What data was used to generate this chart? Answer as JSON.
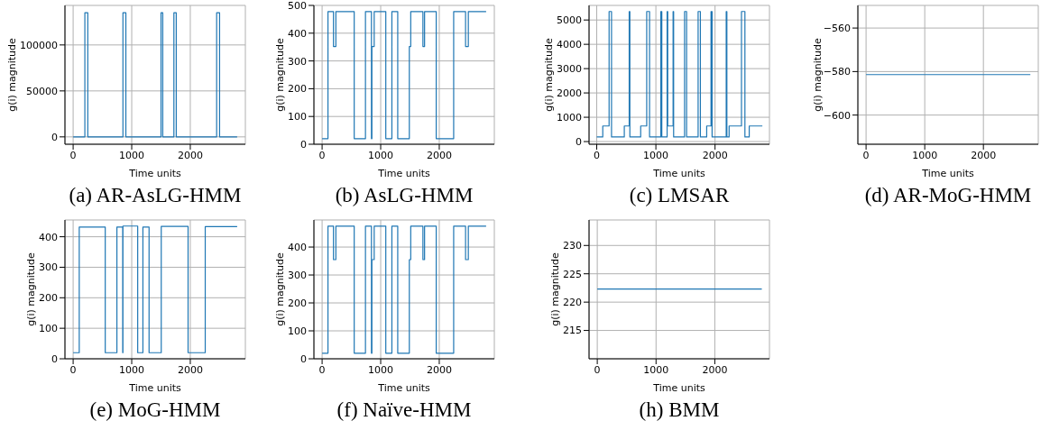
{
  "chart_data": [
    {
      "type": "step",
      "title": "(a) AR-AsLG-HMM",
      "xlabel": "Time units",
      "ylabel": "g(i) magnitude",
      "grid": true,
      "xlim": [
        -140,
        2940
      ],
      "xticks": [
        0,
        1000,
        2000
      ],
      "ylim": [
        -8000,
        143000
      ],
      "yticks": [
        0,
        50000,
        100000
      ],
      "series": [
        {
          "color": "#1f77b4",
          "x": [
            0,
            100,
            200,
            250,
            550,
            750,
            850,
            900,
            1100,
            1200,
            1300,
            1500,
            1530,
            1720,
            1760,
            1950,
            2250,
            2450,
            2500,
            2800
          ],
          "values": [
            0,
            0,
            135000,
            0,
            0,
            0,
            135000,
            0,
            0,
            0,
            0,
            135000,
            0,
            135000,
            0,
            0,
            0,
            135000,
            0,
            0
          ]
        }
      ]
    },
    {
      "type": "step",
      "title": "(b) AsLG-HMM",
      "xlabel": "Time units",
      "ylabel": "g(i) magnitude",
      "grid": true,
      "xlim": [
        -140,
        2940
      ],
      "xticks": [
        0,
        1000,
        2000
      ],
      "ylim": [
        0,
        500
      ],
      "yticks": [
        0,
        100,
        200,
        300,
        400,
        500
      ],
      "series": [
        {
          "color": "#1f77b4",
          "x": [
            0,
            100,
            194,
            235,
            548,
            740,
            842,
            850,
            889,
            1087,
            1191,
            1291,
            1489,
            1513,
            1721,
            1749,
            1948,
            2246,
            2449,
            2496,
            2800
          ],
          "values": [
            20,
            478,
            352,
            478,
            20,
            478,
            20,
            352,
            478,
            20,
            478,
            20,
            352,
            478,
            352,
            478,
            20,
            478,
            352,
            478,
            478
          ]
        }
      ]
    },
    {
      "type": "step",
      "title": "(c) LMSAR",
      "xlabel": "Time units",
      "ylabel": "g(i) magnitude",
      "grid": true,
      "xlim": [
        -130,
        2920
      ],
      "xticks": [
        0,
        1000,
        2000
      ],
      "ylim": [
        -110,
        5600
      ],
      "yticks": [
        0,
        1000,
        2000,
        3000,
        4000,
        5000
      ],
      "series": [
        {
          "color": "#1f77b4",
          "x": [
            0,
            102,
            209,
            250,
            466,
            549,
            560,
            743,
            845,
            893,
            1083,
            1100,
            1190,
            1200,
            1291,
            1300,
            1485,
            1519,
            1714,
            1752,
            1859,
            1932,
            1950,
            2189,
            2200,
            2238,
            2447,
            2505,
            2578,
            2800
          ],
          "values": [
            190,
            640,
            5350,
            190,
            640,
            5350,
            190,
            640,
            5350,
            190,
            5350,
            190,
            5350,
            640,
            5350,
            190,
            5350,
            190,
            5350,
            190,
            640,
            5350,
            190,
            5350,
            190,
            640,
            5350,
            190,
            640,
            640
          ]
        }
      ]
    },
    {
      "type": "line",
      "title": "(d) AR-MoG-HMM",
      "xlabel": "Time units",
      "ylabel": "g(i) magnitude",
      "grid": true,
      "xlim": [
        -140,
        2935
      ],
      "xticks": [
        0,
        1000,
        2000
      ],
      "ylim": [
        -613.4,
        -549.6
      ],
      "yticks": [
        {
          "value": -560,
          "label": "−560"
        },
        {
          "value": -580,
          "label": "−580"
        },
        {
          "value": -600,
          "label": "−600"
        }
      ],
      "series": [
        {
          "color": "#1f77b4",
          "x": [
            0,
            2800
          ],
          "values": [
            -581.4,
            -581.4
          ]
        }
      ]
    },
    {
      "type": "step",
      "title": "(e) MoG-HMM",
      "xlabel": "Time units",
      "ylabel": "g(i) magnitude",
      "grid": true,
      "xlim": [
        -140,
        2940
      ],
      "xticks": [
        0,
        1000,
        2000
      ],
      "ylim": [
        0,
        455
      ],
      "yticks": [
        0,
        100,
        200,
        300,
        400
      ],
      "series": [
        {
          "color": "#1f77b4",
          "x": [
            0,
            104,
            548,
            747,
            846,
            850,
            1102,
            1191,
            1296,
            1504,
            1962,
            2255,
            2800
          ],
          "values": [
            20,
            432,
            20,
            432,
            20,
            435,
            20,
            432,
            20,
            434,
            20,
            433,
            433
          ]
        }
      ]
    },
    {
      "type": "step",
      "title": "(f) Naïve-HMM",
      "xlabel": "Time units",
      "ylabel": "g(i) magnitude",
      "grid": true,
      "xlim": [
        -140,
        2940
      ],
      "xticks": [
        0,
        1000,
        2000
      ],
      "ylim": [
        0,
        497
      ],
      "yticks": [
        0,
        100,
        200,
        300,
        400
      ],
      "series": [
        {
          "color": "#1f77b4",
          "x": [
            0,
            100,
            194,
            235,
            548,
            740,
            842,
            850,
            889,
            1087,
            1191,
            1291,
            1489,
            1513,
            1721,
            1749,
            1948,
            2246,
            2449,
            2496,
            2800
          ],
          "values": [
            20,
            475,
            355,
            475,
            20,
            475,
            20,
            355,
            475,
            20,
            475,
            20,
            355,
            475,
            355,
            475,
            20,
            475,
            355,
            475,
            475
          ]
        }
      ]
    },
    {
      "type": "line",
      "title": "(h) BMM",
      "xlabel": "Time units",
      "ylabel": "g(i) magnitude",
      "grid": true,
      "xlim": [
        -140,
        2930
      ],
      "xticks": [
        0,
        1000,
        2000
      ],
      "ylim": [
        210,
        234.5
      ],
      "yticks": [
        215,
        220,
        225,
        230
      ],
      "series": [
        {
          "color": "#1f77b4",
          "x": [
            0,
            2800
          ],
          "values": [
            222.3,
            222.3
          ]
        }
      ]
    }
  ]
}
